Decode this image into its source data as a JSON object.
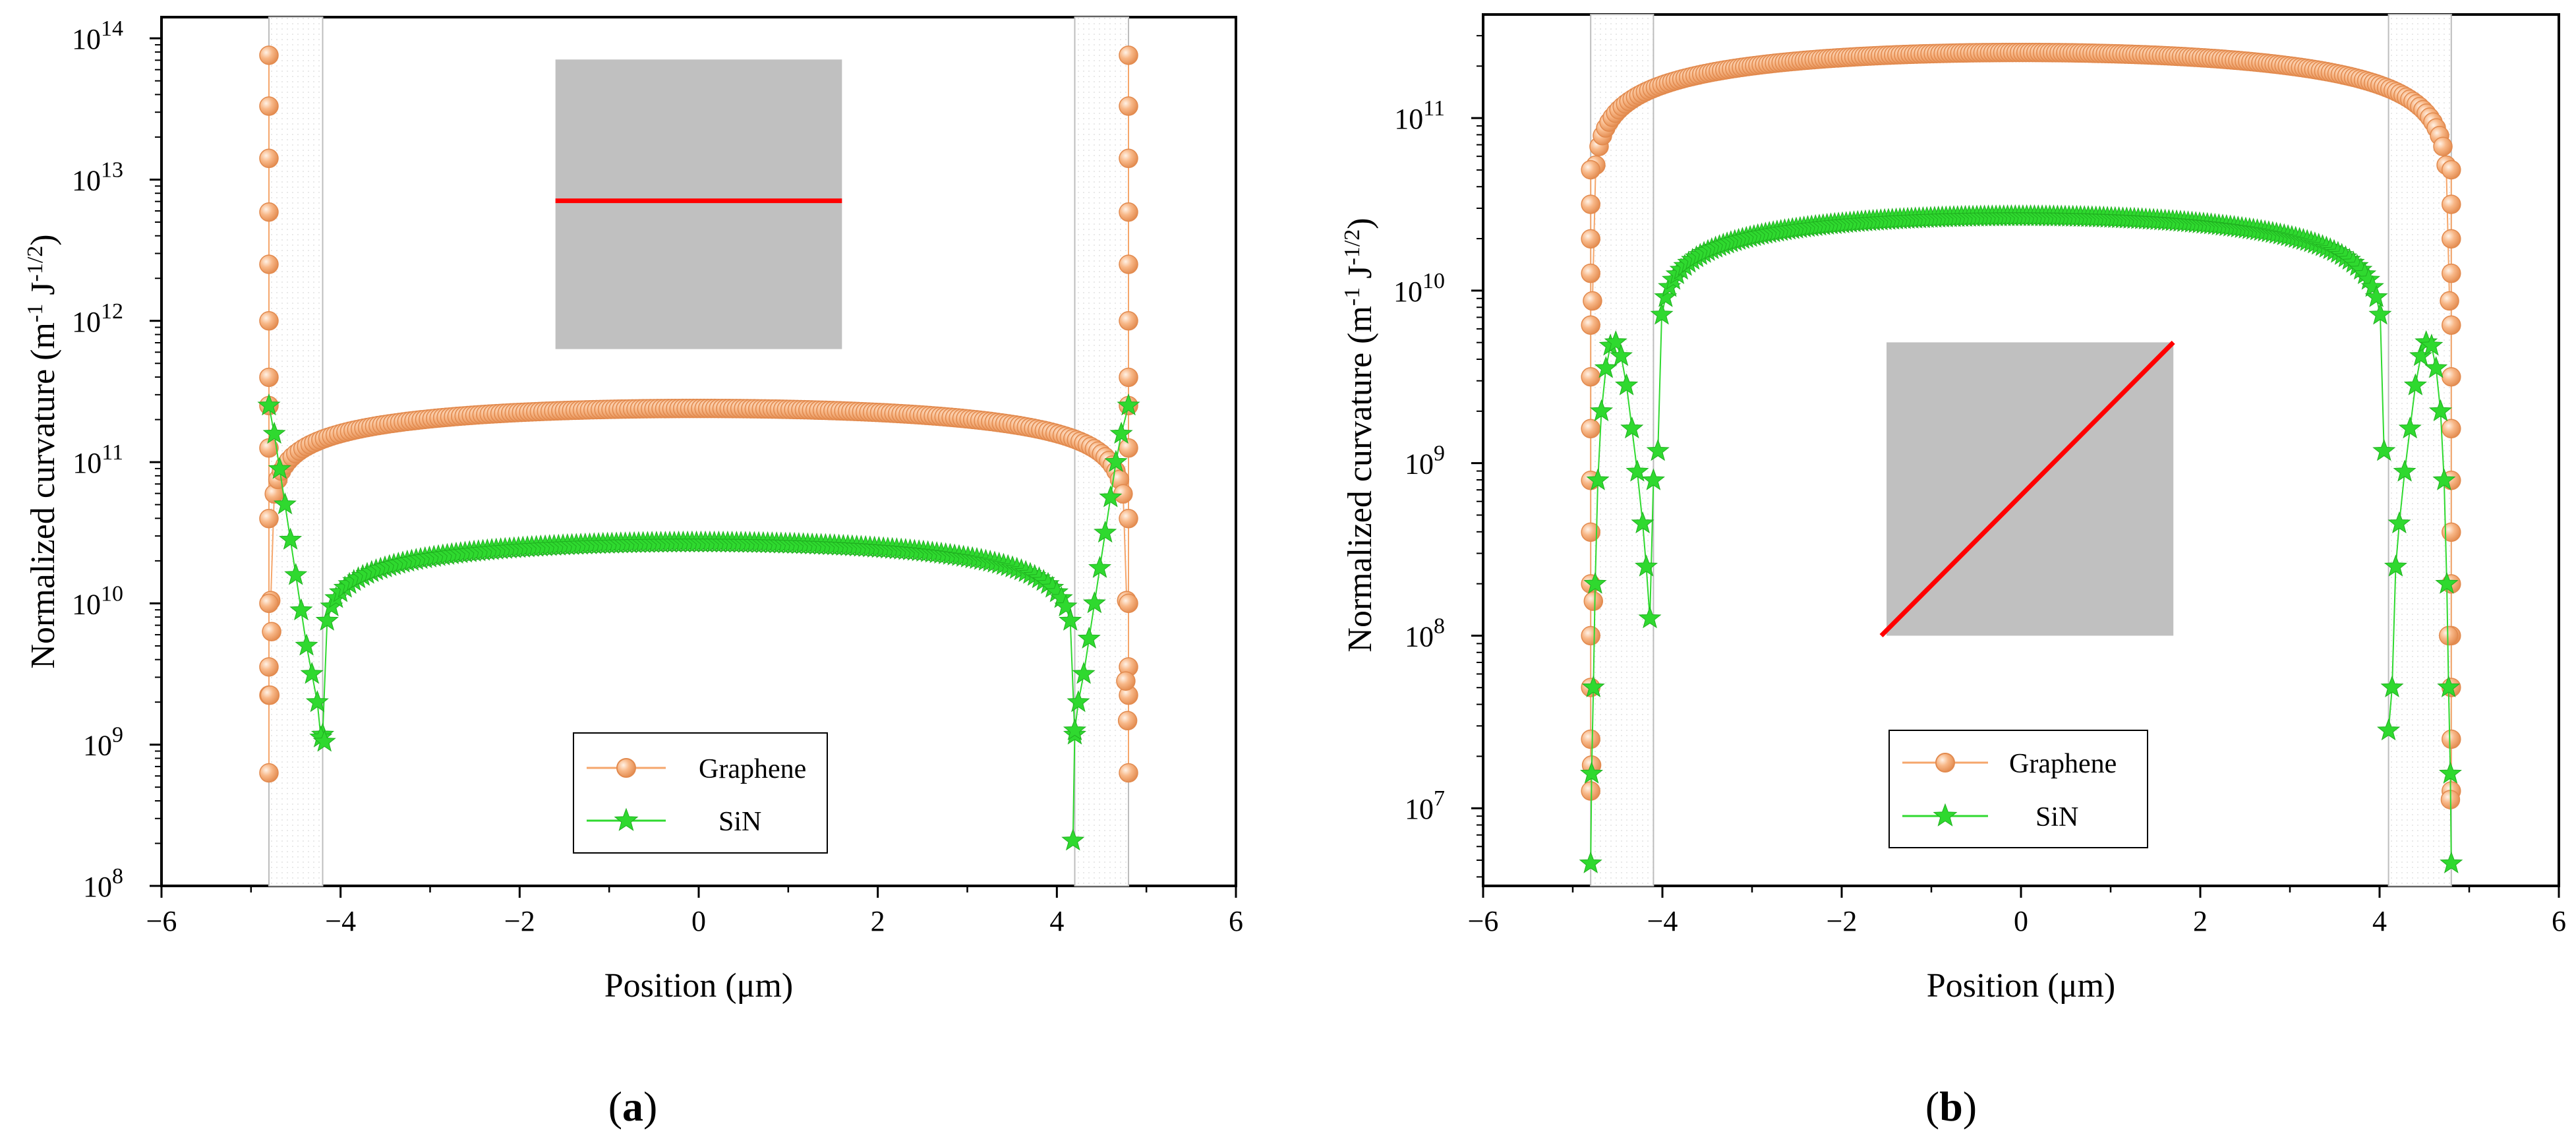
{
  "figure": {
    "colors": {
      "graphene": "#f5a66b",
      "sin": "#2fd92f",
      "inset": "#c0c0c0",
      "inset_line": "#ff0000",
      "edge_box": "#dddddd"
    }
  },
  "chart_data": [
    {
      "type": "scatter",
      "panel_label": "(a)",
      "panel_letter": "a",
      "xlabel": "Position (μm)",
      "ylabel_html_note": "Normalized curvature (m-1 J-1/2)",
      "ylabel_main": "Normalized curvature (m",
      "ylabel_sup1": "-1",
      "ylabel_mid": " J",
      "ylabel_sup2": "-1/2",
      "ylabel_end": ")",
      "y_scale": "log",
      "xlim": [
        -6,
        6
      ],
      "ylim_log10": [
        8,
        14.15
      ],
      "x_ticks": [
        -6,
        -4,
        -2,
        0,
        2,
        4,
        6
      ],
      "x_tick_labels": [
        "−6",
        "−4",
        "−2",
        "0",
        "2",
        "4",
        "6"
      ],
      "y_tick_exponents": [
        8,
        9,
        10,
        11,
        12,
        13,
        14
      ],
      "y_tick_base": "10",
      "edge_regions": [
        [
          -4.8,
          -4.2
        ],
        [
          4.2,
          4.8
        ]
      ],
      "inset": {
        "kind": "flat",
        "x_range": [
          -1.6,
          1.6
        ],
        "log_range": [
          11.8,
          13.85
        ],
        "line_log_start": 12.85,
        "line_log_end": 12.85
      },
      "legend": {
        "position": "bottom-center",
        "entries": [
          "Graphene",
          "SiN"
        ]
      },
      "series": [
        {
          "name": "Graphene",
          "marker": "circle",
          "curve": {
            "center": 11.38,
            "edge_left": -4.78,
            "edge_right": 4.78,
            "exponent": 0.34,
            "n": 240
          },
          "edge_column_x": [
            -4.8,
            4.8
          ],
          "edge_column_log": [
            8.8,
            9.35,
            9.55,
            10.0,
            10.6,
            11.1,
            11.4,
            11.6,
            12.0,
            12.4,
            12.77,
            13.15,
            13.52,
            13.88
          ],
          "bottom_points": [
            [
              -4.79,
              9.35
            ],
            [
              4.79,
              9.17
            ],
            [
              -4.77,
              9.8
            ],
            [
              4.77,
              9.45
            ]
          ]
        },
        {
          "name": "SiN",
          "marker": "star",
          "curve": {
            "center": 10.43,
            "edge_left": -4.2,
            "edge_right": 4.2,
            "exponent": 0.34,
            "n": 170
          },
          "edge_points": [
            [
              -4.8,
              11.4
            ],
            [
              -4.74,
              11.2
            ],
            [
              -4.68,
              10.95
            ],
            [
              -4.62,
              10.7
            ],
            [
              -4.56,
              10.45
            ],
            [
              -4.5,
              10.2
            ],
            [
              -4.44,
              9.95
            ],
            [
              -4.38,
              9.7
            ],
            [
              -4.32,
              9.5
            ],
            [
              -4.26,
              9.3
            ],
            [
              -4.22,
              9.05
            ],
            [
              -4.18,
              9.02
            ],
            [
              4.18,
              8.32
            ],
            [
              4.2,
              9.1
            ],
            [
              4.24,
              9.3
            ],
            [
              4.3,
              9.5
            ],
            [
              4.36,
              9.75
            ],
            [
              4.42,
              10.0
            ],
            [
              4.48,
              10.25
            ],
            [
              4.54,
              10.5
            ],
            [
              4.6,
              10.75
            ],
            [
              4.66,
              11.0
            ],
            [
              4.72,
              11.2
            ],
            [
              4.8,
              11.4
            ]
          ]
        }
      ]
    },
    {
      "type": "scatter",
      "panel_label": "(b)",
      "panel_letter": "b",
      "xlabel": "Position (μm)",
      "ylabel_main": "Normalized curvature (m",
      "ylabel_sup1": "-1",
      "ylabel_mid": " J",
      "ylabel_sup2": "-1/2",
      "ylabel_end": ")",
      "y_scale": "log",
      "xlim": [
        -6,
        6
      ],
      "ylim_log10": [
        6.55,
        11.6
      ],
      "x_ticks": [
        -6,
        -4,
        -2,
        0,
        2,
        4,
        6
      ],
      "x_tick_labels": [
        "−6",
        "−4",
        "−2",
        "0",
        "2",
        "4",
        "6"
      ],
      "y_tick_exponents": [
        7,
        8,
        9,
        10,
        11
      ],
      "y_tick_base": "10",
      "edge_regions": [
        [
          -4.8,
          -4.1
        ],
        [
          4.1,
          4.8
        ]
      ],
      "inset": {
        "kind": "diagonal",
        "x_range": [
          -1.5,
          1.7
        ],
        "log_range": [
          8.0,
          9.7
        ],
        "line_log_start": 8.0,
        "line_log_end": 9.7
      },
      "legend": {
        "position": "bottom-center",
        "entries": [
          "Graphene",
          "SiN"
        ]
      },
      "series": [
        {
          "name": "Graphene",
          "marker": "circle",
          "curve": {
            "center": 11.38,
            "edge_left": -4.78,
            "edge_right": 4.78,
            "exponent": 0.36,
            "n": 260
          },
          "edge_column_x": [
            -4.8,
            4.8
          ],
          "edge_column_log": [
            7.1,
            7.4,
            7.7,
            8.0,
            8.3,
            8.6,
            8.9,
            9.2,
            9.5,
            9.8,
            10.1,
            10.3,
            10.5,
            10.7
          ],
          "bottom_points": [
            [
              -4.79,
              7.25
            ],
            [
              4.79,
              7.05
            ],
            [
              -4.77,
              8.2
            ],
            [
              4.77,
              8.0
            ]
          ]
        },
        {
          "name": "SiN",
          "marker": "star",
          "curve": {
            "center": 10.43,
            "edge_left": -4.05,
            "edge_right": 4.05,
            "exponent": 0.34,
            "n": 190
          },
          "edge_points": [
            [
              -4.8,
              6.68
            ],
            [
              -4.79,
              7.2
            ],
            [
              -4.77,
              7.7
            ],
            [
              -4.75,
              8.3
            ],
            [
              -4.72,
              8.9
            ],
            [
              -4.68,
              9.3
            ],
            [
              -4.63,
              9.55
            ],
            [
              -4.58,
              9.68
            ],
            [
              -4.52,
              9.7
            ],
            [
              -4.46,
              9.62
            ],
            [
              -4.4,
              9.45
            ],
            [
              -4.34,
              9.2
            ],
            [
              -4.28,
              8.95
            ],
            [
              -4.22,
              8.65
            ],
            [
              -4.18,
              8.4
            ],
            [
              -4.14,
              8.1
            ],
            [
              -4.1,
              8.9
            ],
            [
              4.1,
              7.45
            ],
            [
              4.14,
              7.7
            ],
            [
              4.18,
              8.4
            ],
            [
              4.22,
              8.65
            ],
            [
              4.28,
              8.95
            ],
            [
              4.34,
              9.2
            ],
            [
              4.4,
              9.45
            ],
            [
              4.46,
              9.62
            ],
            [
              4.52,
              9.7
            ],
            [
              4.58,
              9.68
            ],
            [
              4.63,
              9.55
            ],
            [
              4.68,
              9.3
            ],
            [
              4.72,
              8.9
            ],
            [
              4.75,
              8.3
            ],
            [
              4.77,
              7.7
            ],
            [
              4.79,
              7.2
            ],
            [
              4.8,
              6.68
            ]
          ]
        }
      ]
    }
  ]
}
